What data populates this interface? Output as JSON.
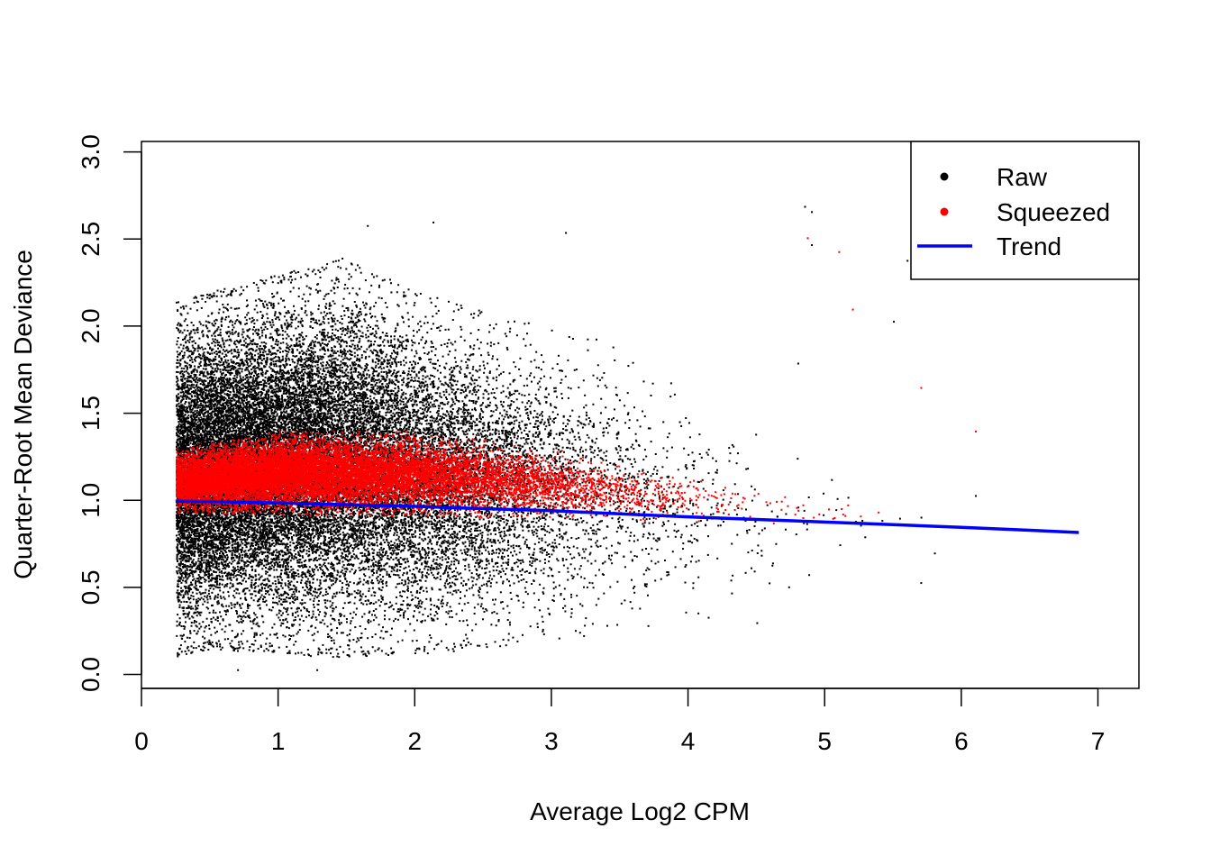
{
  "chart_data": {
    "type": "scatter",
    "title": "",
    "xlabel": "Average Log2 CPM",
    "ylabel": "Quarter-Root Mean Deviance",
    "xlim": [
      0,
      7.3
    ],
    "ylim": [
      -0.08,
      3.06
    ],
    "x_ticks": [
      0,
      1,
      2,
      3,
      4,
      5,
      6,
      7
    ],
    "x_tick_labels": [
      "0",
      "1",
      "2",
      "3",
      "4",
      "5",
      "6",
      "7"
    ],
    "y_ticks": [
      0,
      0.5,
      1,
      1.5,
      2,
      2.5,
      3
    ],
    "y_tick_labels": [
      "0.0",
      "0.5",
      "1.0",
      "1.5",
      "2.0",
      "2.5",
      "3.0"
    ],
    "grid": false,
    "legend_position": "top-right",
    "series": [
      {
        "name": "Raw",
        "kind": "points",
        "color": "#000000",
        "x_range": [
          0.25,
          6.1
        ],
        "spread_sample": [
          [
            0.25,
            0.1,
            2.14
          ],
          [
            0.5,
            0.15,
            2.2
          ],
          [
            1.0,
            0.12,
            2.3
          ],
          [
            1.5,
            0.1,
            2.4
          ],
          [
            2.0,
            0.12,
            2.2
          ],
          [
            2.5,
            0.15,
            2.1
          ],
          [
            3.0,
            0.2,
            2.0
          ],
          [
            3.5,
            0.25,
            1.9
          ],
          [
            4.0,
            0.3,
            1.6
          ],
          [
            4.5,
            0.4,
            1.4
          ],
          [
            5.0,
            0.6,
            1.2
          ],
          [
            5.5,
            0.75,
            1.0
          ],
          [
            6.0,
            0.8,
            1.0
          ]
        ]
      },
      {
        "name": "Squeezed",
        "kind": "points",
        "color": "#ff0000",
        "x_range": [
          0.25,
          6.1
        ],
        "spread_sample": [
          [
            0.25,
            0.93,
            1.3
          ],
          [
            1.0,
            0.92,
            1.4
          ],
          [
            2.0,
            0.91,
            1.4
          ],
          [
            3.0,
            0.89,
            1.3
          ],
          [
            4.0,
            0.87,
            1.15
          ],
          [
            5.0,
            0.85,
            1.0
          ],
          [
            6.0,
            0.84,
            0.9
          ]
        ]
      },
      {
        "name": "Trend",
        "kind": "line",
        "color": "#0000ff",
        "x": [
          0.25,
          0.5,
          1.0,
          1.5,
          2.0,
          2.5,
          3.0,
          3.5,
          4.0,
          4.5,
          5.0,
          5.5,
          6.0,
          6.5,
          6.86
        ],
        "y": [
          0.995,
          0.993,
          0.985,
          0.975,
          0.965,
          0.952,
          0.94,
          0.922,
          0.905,
          0.89,
          0.875,
          0.86,
          0.845,
          0.828,
          0.815
        ]
      }
    ],
    "outliers": [
      [
        0.25,
        2.14
      ],
      [
        1.65,
        2.58
      ],
      [
        2.13,
        2.6
      ],
      [
        3.1,
        2.54
      ],
      [
        4.85,
        2.69
      ],
      [
        4.9,
        2.66
      ],
      [
        5.1,
        2.43
      ],
      [
        5.6,
        2.38
      ],
      [
        4.87,
        2.51
      ],
      [
        4.9,
        2.47
      ],
      [
        6.1,
        1.4
      ],
      [
        5.8,
        0.7
      ],
      [
        5.7,
        0.53
      ],
      [
        4.8,
        1.79
      ],
      [
        5.2,
        2.1
      ],
      [
        5.5,
        2.03
      ],
      [
        5.7,
        1.65
      ],
      [
        6.1,
        1.03
      ],
      [
        4.5,
        0.3
      ],
      [
        0.7,
        0.03
      ],
      [
        1.28,
        0.03
      ]
    ]
  }
}
